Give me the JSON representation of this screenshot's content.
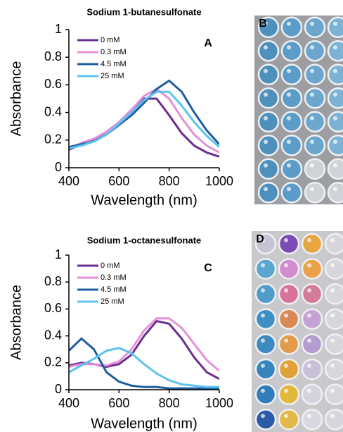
{
  "chart_data": [
    {
      "type": "line",
      "title": "Sodium 1-butanesulfonate",
      "panel_label": "A",
      "x_label": "Wavelength (nm)",
      "y_label": "Absorbance",
      "x": [
        400,
        450,
        500,
        550,
        600,
        650,
        700,
        750,
        800,
        850,
        900,
        950,
        1000
      ],
      "series": [
        {
          "name": "0 mM",
          "color": "#6a2c91",
          "values": [
            0.13,
            0.17,
            0.2,
            0.26,
            0.33,
            0.42,
            0.5,
            0.5,
            0.38,
            0.25,
            0.16,
            0.11,
            0.08
          ]
        },
        {
          "name": "0.3 mM",
          "color": "#e590d8",
          "values": [
            0.14,
            0.18,
            0.21,
            0.26,
            0.33,
            0.42,
            0.52,
            0.57,
            0.5,
            0.36,
            0.24,
            0.16,
            0.11
          ]
        },
        {
          "name": "4.5 mM",
          "color": "#1f5c9e",
          "values": [
            0.15,
            0.17,
            0.19,
            0.24,
            0.31,
            0.38,
            0.47,
            0.57,
            0.63,
            0.55,
            0.4,
            0.27,
            0.17
          ]
        },
        {
          "name": "25 mM",
          "color": "#5cc4ef",
          "values": [
            0.14,
            0.16,
            0.19,
            0.24,
            0.32,
            0.4,
            0.49,
            0.55,
            0.55,
            0.45,
            0.33,
            0.23,
            0.15
          ]
        }
      ],
      "xlim": [
        400,
        1000
      ],
      "xticks": [
        400,
        600,
        800,
        1000
      ],
      "ylim": [
        0,
        1
      ],
      "yticks": [
        0,
        0.2,
        0.4,
        0.6,
        0.8,
        1
      ]
    },
    {
      "type": "line",
      "title": "Sodium 1-octanesulfonate",
      "panel_label": "C",
      "x_label": "Wavelength (nm)",
      "y_label": "Absorbance",
      "x": [
        400,
        450,
        500,
        550,
        600,
        650,
        700,
        750,
        800,
        850,
        900,
        950,
        1000
      ],
      "series": [
        {
          "name": "0 mM",
          "color": "#6a2c91",
          "values": [
            0.18,
            0.2,
            0.19,
            0.17,
            0.19,
            0.26,
            0.4,
            0.51,
            0.49,
            0.38,
            0.24,
            0.13,
            0.08
          ]
        },
        {
          "name": "0.3 mM",
          "color": "#e590d8",
          "values": [
            0.17,
            0.19,
            0.19,
            0.18,
            0.21,
            0.3,
            0.44,
            0.53,
            0.53,
            0.46,
            0.34,
            0.22,
            0.14
          ]
        },
        {
          "name": "4.5 mM",
          "color": "#1f5c9e",
          "values": [
            0.29,
            0.38,
            0.3,
            0.13,
            0.06,
            0.03,
            0.02,
            0.02,
            0.01,
            0.01,
            0.01,
            0.01,
            0.01
          ]
        },
        {
          "name": "25 mM",
          "color": "#5cc4ef",
          "values": [
            0.13,
            0.18,
            0.23,
            0.29,
            0.31,
            0.27,
            0.19,
            0.12,
            0.07,
            0.04,
            0.03,
            0.02,
            0.02
          ]
        }
      ],
      "xlim": [
        400,
        1000
      ],
      "xticks": [
        400,
        600,
        800,
        1000
      ],
      "ylim": [
        0,
        1
      ],
      "yticks": [
        0,
        0.2,
        0.4,
        0.6,
        0.8,
        1
      ]
    }
  ],
  "photos": [
    {
      "label": "B"
    },
    {
      "label": "D"
    }
  ]
}
